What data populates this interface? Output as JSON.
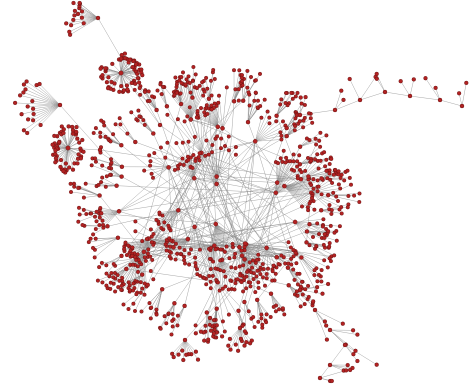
{
  "diagram": {
    "type": "network-graph",
    "node_color": "#b22222",
    "edge_color": "#8a8a8a",
    "background": "#ffffff",
    "labels": []
  }
}
